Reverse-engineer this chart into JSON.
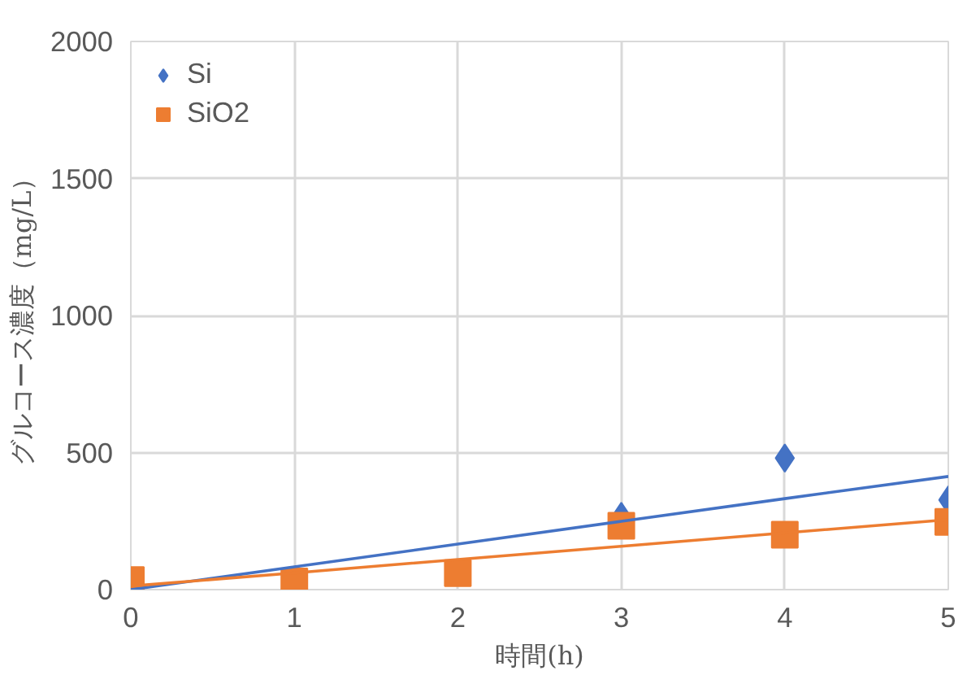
{
  "chart_data": {
    "type": "scatter",
    "xlabel": "時間(h)",
    "ylabel": "グルコース濃度（mg/L）",
    "x": [
      0,
      1,
      2,
      3,
      4,
      5
    ],
    "series": [
      {
        "name": "Si",
        "color": "#4472c4",
        "marker": "diamond",
        "values": [
          null,
          null,
          null,
          267,
          480,
          327
        ]
      },
      {
        "name": "SiO2",
        "color": "#ed7d31",
        "marker": "square",
        "values": [
          35,
          30,
          60,
          233,
          200,
          247
        ]
      },
      {
        "type": "line",
        "color": "#4472c4",
        "values": [
          0,
          83,
          166,
          249,
          332,
          413
        ]
      },
      {
        "type": "line",
        "color": "#ed7d31",
        "values": [
          13,
          61,
          110,
          158,
          207,
          255
        ]
      }
    ],
    "xlim": [
      0,
      5
    ],
    "ylim": [
      0,
      2000
    ],
    "xticks": [
      0,
      1,
      2,
      3,
      4,
      5
    ],
    "yticks": [
      0,
      500,
      1000,
      1500,
      2000
    ],
    "grid": true,
    "legend": "top left"
  }
}
